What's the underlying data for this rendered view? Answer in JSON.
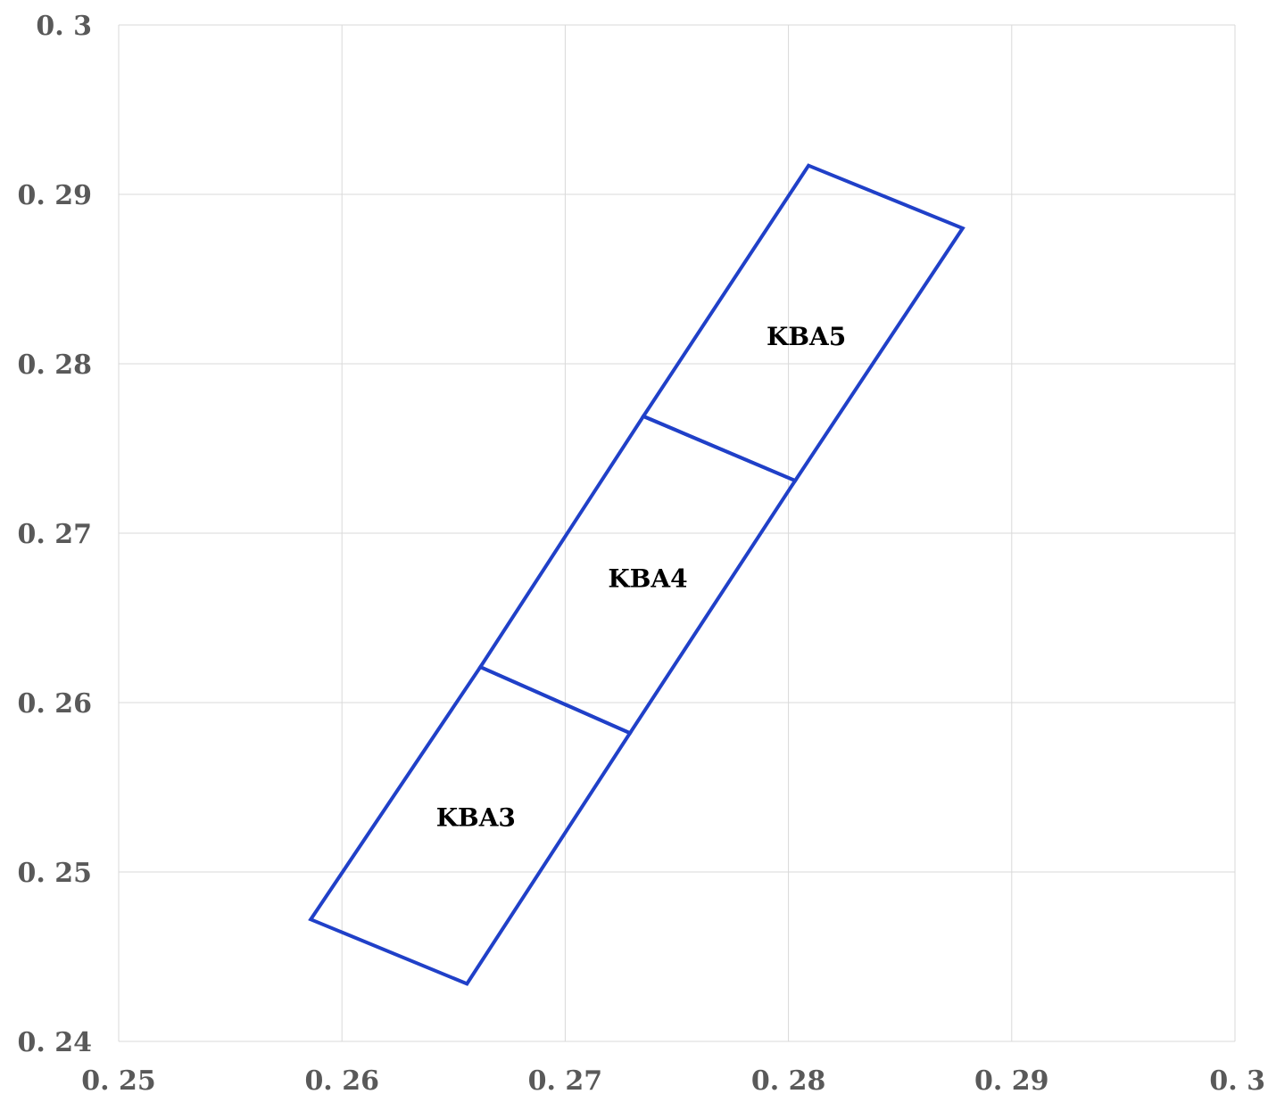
{
  "chart_data": {
    "type": "scatter",
    "title": "",
    "xlabel": "",
    "ylabel": "",
    "xlim": [
      0.25,
      0.3
    ],
    "ylim": [
      0.24,
      0.3
    ],
    "x_ticks": [
      0.25,
      0.26,
      0.27,
      0.28,
      0.29,
      0.3
    ],
    "y_ticks": [
      0.24,
      0.25,
      0.26,
      0.27,
      0.28,
      0.29,
      0.3
    ],
    "x_tick_labels": [
      "0. 25",
      "0. 26",
      "0. 27",
      "0. 28",
      "0. 29",
      "0. 3"
    ],
    "y_tick_labels": [
      "0. 24",
      "0. 25",
      "0. 26",
      "0. 27",
      "0. 28",
      "0. 29",
      "0. 3"
    ],
    "grid": true,
    "series_color": "#2040c8",
    "regions": [
      {
        "name": "KBA3",
        "label_at": [
          0.266,
          0.2531
        ],
        "polygon": [
          [
            0.2586,
            0.2472
          ],
          [
            0.2656,
            0.2434
          ],
          [
            0.2729,
            0.2582
          ],
          [
            0.2662,
            0.2621
          ]
        ]
      },
      {
        "name": "KBA4",
        "label_at": [
          0.2737,
          0.2672
        ],
        "polygon": [
          [
            0.2662,
            0.2621
          ],
          [
            0.2729,
            0.2582
          ],
          [
            0.2803,
            0.2731
          ],
          [
            0.2735,
            0.2769
          ]
        ]
      },
      {
        "name": "KBA5",
        "label_at": [
          0.2808,
          0.2815
        ],
        "polygon": [
          [
            0.2735,
            0.2769
          ],
          [
            0.2803,
            0.2731
          ],
          [
            0.2878,
            0.288
          ],
          [
            0.2809,
            0.2917
          ]
        ]
      }
    ]
  }
}
